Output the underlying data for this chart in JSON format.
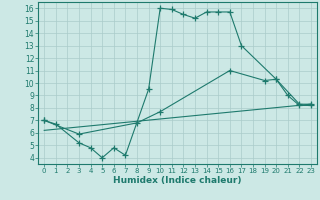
{
  "xlabel": "Humidex (Indice chaleur)",
  "xlim": [
    -0.5,
    23.5
  ],
  "ylim": [
    3.5,
    16.5
  ],
  "yticks": [
    4,
    5,
    6,
    7,
    8,
    9,
    10,
    11,
    12,
    13,
    14,
    15,
    16
  ],
  "xticks": [
    0,
    1,
    2,
    3,
    4,
    5,
    6,
    7,
    8,
    9,
    10,
    11,
    12,
    13,
    14,
    15,
    16,
    17,
    18,
    19,
    20,
    21,
    22,
    23
  ],
  "bg_color": "#cce8e5",
  "grid_color": "#aaccca",
  "line_color": "#1e7a6d",
  "curve1_x": [
    0,
    1,
    3,
    4,
    5,
    6,
    7,
    9,
    10,
    11,
    12,
    13,
    14,
    15,
    16,
    17,
    20,
    21,
    22,
    23
  ],
  "curve1_y": [
    7.0,
    6.7,
    5.2,
    4.8,
    4.0,
    4.8,
    4.2,
    9.5,
    16.0,
    15.9,
    15.5,
    15.2,
    15.7,
    15.7,
    15.7,
    13.0,
    10.3,
    9.0,
    8.2,
    8.2
  ],
  "curve2_x": [
    0,
    3,
    8,
    10,
    16,
    19,
    20,
    22,
    23
  ],
  "curve2_y": [
    7.0,
    5.9,
    6.8,
    7.7,
    11.0,
    10.2,
    10.3,
    8.3,
    8.3
  ],
  "line_x": [
    0,
    23
  ],
  "line_y": [
    6.2,
    8.3
  ]
}
